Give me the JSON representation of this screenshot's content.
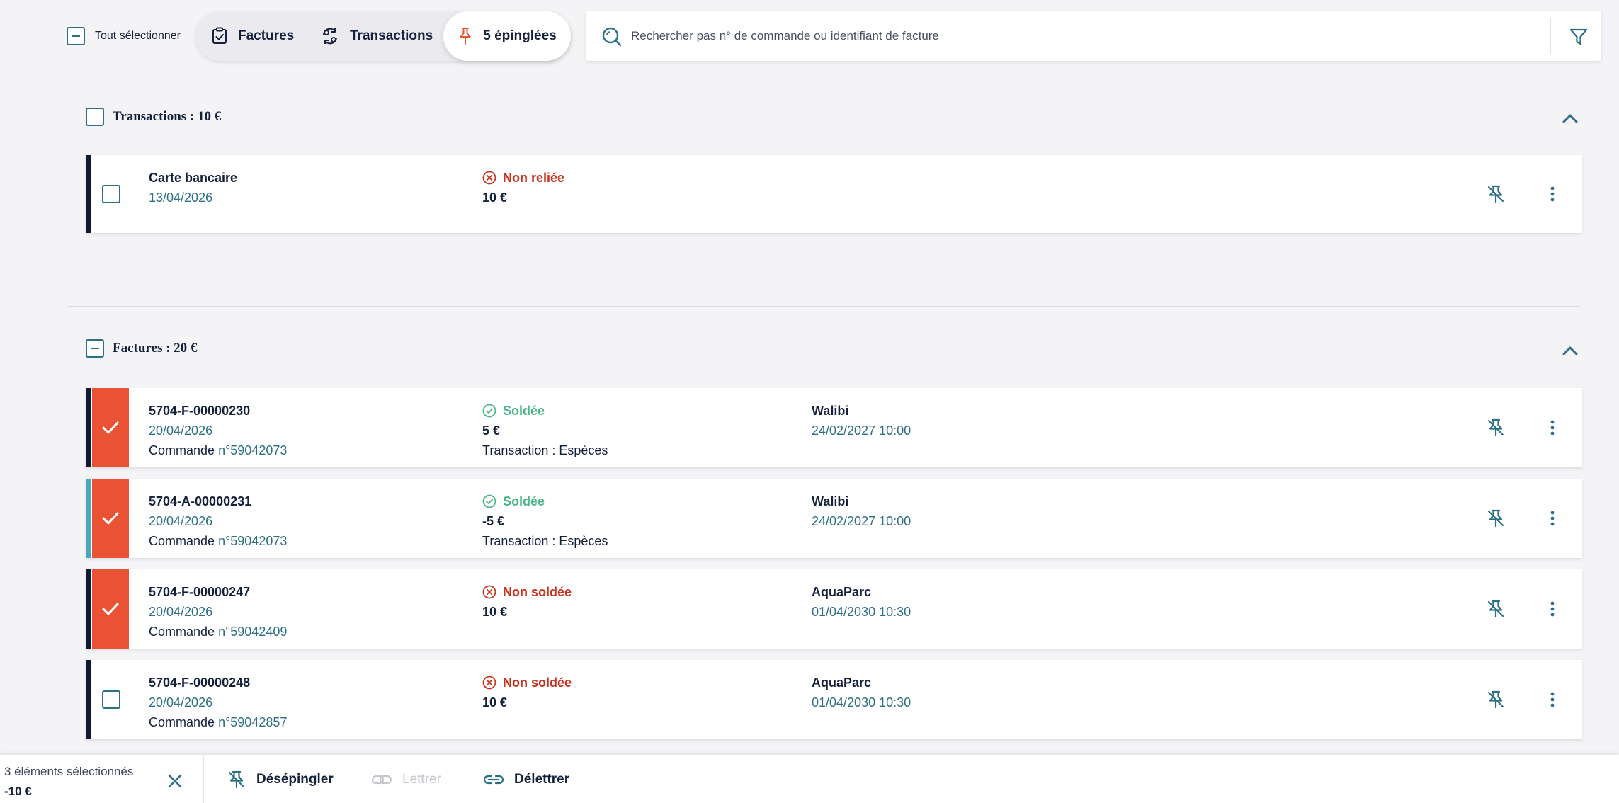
{
  "toolbar": {
    "select_all_label": "Tout sélectionner",
    "tabs": [
      {
        "label": "Factures",
        "icon": "invoice-check-icon"
      },
      {
        "label": "Transactions",
        "icon": "transactions-exchange-icon"
      },
      {
        "label": "5 épinglées",
        "icon": "pin-icon",
        "active": true
      }
    ],
    "search": {
      "placeholder": "Rechercher pas n° de commande ou identifiant de facture",
      "value": ""
    }
  },
  "sections": {
    "transactions": {
      "title": "Transactions : 10 €",
      "rows": [
        {
          "title": "Carte bancaire",
          "date": "13/04/2026",
          "status": "Non reliée",
          "amount": "10 €",
          "selected": false
        }
      ]
    },
    "factures": {
      "title": "Factures : 20 €",
      "rows": [
        {
          "id": "5704-F-00000230",
          "date": "20/04/2026",
          "order_prefix": "Commande",
          "order_no": "n°59042073",
          "status": "Soldée",
          "amount": "5 €",
          "transaction": "Transaction : Espèces",
          "place": "Walibi",
          "datetime": "24/02/2027 10:00",
          "selected": true
        },
        {
          "id": "5704-A-00000231",
          "date": "20/04/2026",
          "order_prefix": "Commande",
          "order_no": "n°59042073",
          "status": "Soldée",
          "amount": "-5 €",
          "transaction": "Transaction : Espèces",
          "place": "Walibi",
          "datetime": "24/02/2027 10:00",
          "selected": true
        },
        {
          "id": "5704-F-00000247",
          "date": "20/04/2026",
          "order_prefix": "Commande",
          "order_no": "n°59042409",
          "status": "Non soldée",
          "amount": "10 €",
          "transaction": "",
          "place": "AquaParc",
          "datetime": "01/04/2030 10:30",
          "selected": true
        },
        {
          "id": "5704-F-00000248",
          "date": "20/04/2026",
          "order_prefix": "Commande",
          "order_no": "n°59042857",
          "status": "Non soldée",
          "amount": "10 €",
          "transaction": "",
          "place": "AquaParc",
          "datetime": "01/04/2030 10:30",
          "selected": false
        }
      ]
    }
  },
  "bottom_bar": {
    "selected_count": "3 éléments sélectionnés",
    "selected_total": "-10 €",
    "actions": {
      "unpin": "Désépingler",
      "letter": "Lettrer",
      "unletter": "Délettrer"
    }
  },
  "colors": {
    "accent": "#2d6f86",
    "selected": "#ea5234",
    "success": "#4cb58a",
    "error": "#c8321f",
    "navy": "#14213d"
  }
}
